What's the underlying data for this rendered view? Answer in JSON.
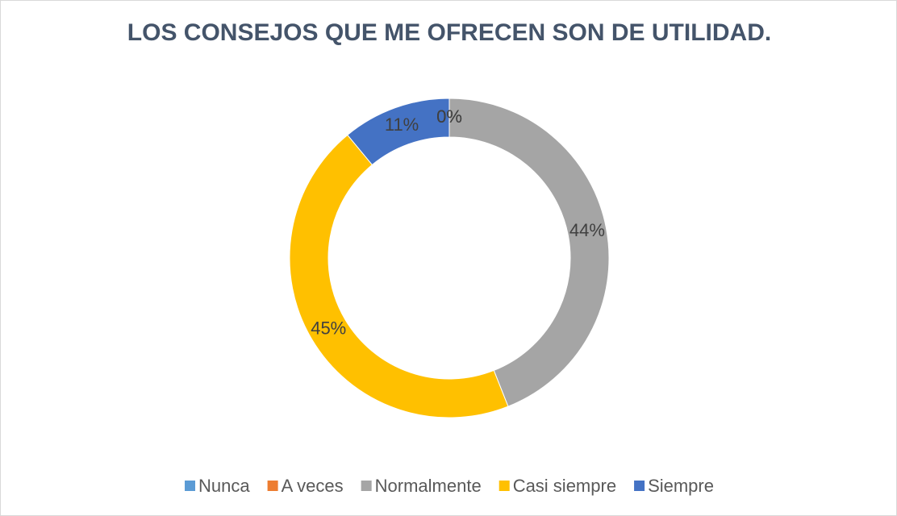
{
  "chart_data": {
    "type": "donut",
    "title": "LOS CONSEJOS QUE ME OFRECEN SON DE UTILIDAD.",
    "categories": [
      "Nunca",
      "A veces",
      "Normalmente",
      "Casi siempre",
      "Siempre"
    ],
    "values": [
      0,
      0,
      44,
      45,
      11
    ],
    "value_labels": [
      "0%",
      "0%",
      "44%",
      "45%",
      "11%"
    ],
    "colors": [
      "#5b9bd5",
      "#ed7d31",
      "#a5a5a5",
      "#ffc000",
      "#4472c4"
    ],
    "legend": "bottom"
  }
}
